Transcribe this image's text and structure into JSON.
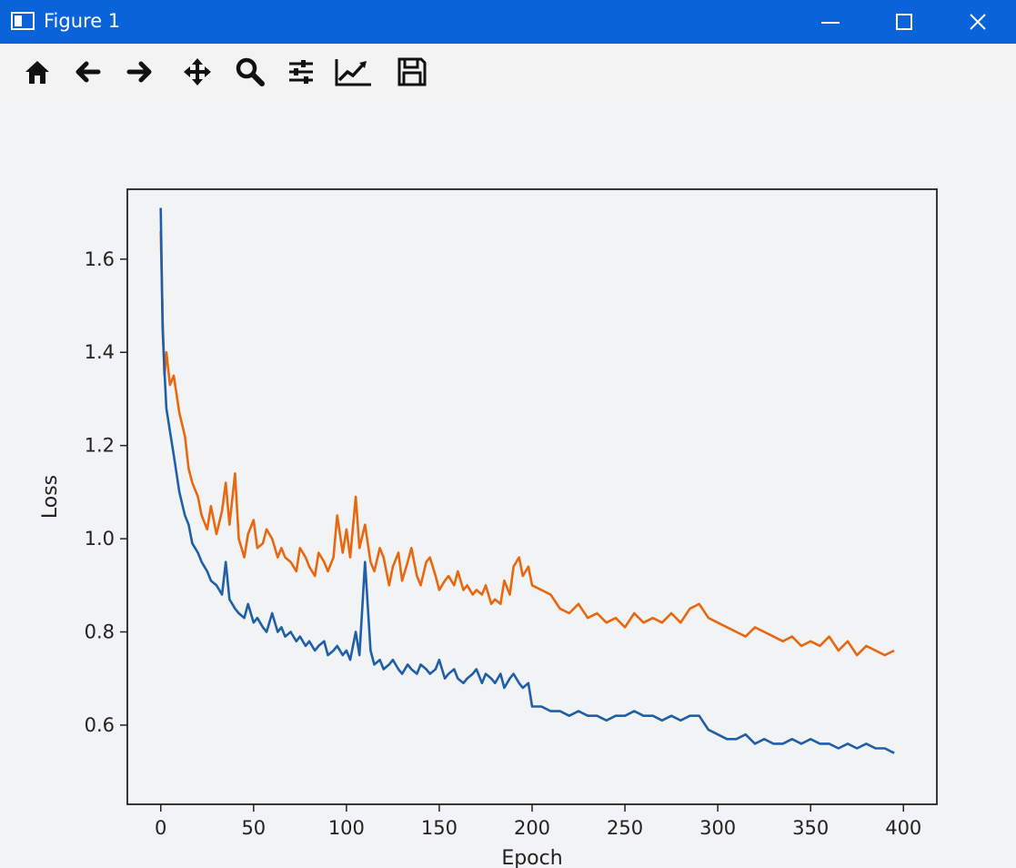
{
  "window": {
    "title": "Figure 1"
  },
  "toolbar": {
    "tools": [
      {
        "name": "home-icon"
      },
      {
        "name": "back-arrow-icon"
      },
      {
        "name": "forward-arrow-icon"
      },
      {
        "name": "pan-icon"
      },
      {
        "name": "zoom-icon"
      },
      {
        "name": "configure-subplots-icon"
      },
      {
        "name": "edit-axis-icon"
      },
      {
        "name": "save-icon"
      }
    ]
  },
  "colors": {
    "title_bar": "#0a63d8",
    "series_blue": "#1f5ea8",
    "series_orange": "#e8670f"
  },
  "chart_data": {
    "type": "line",
    "title": "",
    "xlabel": "Epoch",
    "ylabel": "Loss",
    "xlim": [
      -18,
      418
    ],
    "ylim": [
      0.43,
      1.75
    ],
    "xticks": [
      0,
      50,
      100,
      150,
      200,
      250,
      300,
      350,
      400
    ],
    "yticks": [
      0.6,
      0.8,
      1.0,
      1.2,
      1.4,
      1.6
    ],
    "grid": false,
    "legend": "none",
    "series": [
      {
        "color": "#e8670f",
        "x": [
          0,
          1,
          2,
          3,
          5,
          7,
          10,
          13,
          15,
          17,
          20,
          22,
          25,
          27,
          30,
          33,
          35,
          37,
          40,
          42,
          45,
          47,
          50,
          52,
          55,
          57,
          60,
          63,
          65,
          67,
          70,
          73,
          75,
          78,
          80,
          83,
          85,
          88,
          90,
          93,
          95,
          98,
          100,
          102,
          105,
          107,
          110,
          113,
          115,
          118,
          120,
          123,
          125,
          128,
          130,
          133,
          135,
          138,
          140,
          143,
          145,
          148,
          150,
          153,
          155,
          158,
          160,
          163,
          165,
          168,
          170,
          173,
          175,
          178,
          180,
          183,
          185,
          188,
          190,
          193,
          195,
          198,
          200,
          205,
          210,
          215,
          220,
          225,
          230,
          235,
          240,
          245,
          250,
          255,
          260,
          265,
          270,
          275,
          280,
          285,
          290,
          295,
          300,
          305,
          310,
          315,
          320,
          325,
          330,
          335,
          340,
          345,
          350,
          355,
          360,
          365,
          370,
          375,
          380,
          385,
          390,
          395
        ],
        "y": [
          1.66,
          1.47,
          1.35,
          1.4,
          1.33,
          1.35,
          1.27,
          1.22,
          1.15,
          1.12,
          1.09,
          1.05,
          1.02,
          1.07,
          1.01,
          1.06,
          1.12,
          1.03,
          1.14,
          1.0,
          0.96,
          1.01,
          1.04,
          0.98,
          0.99,
          1.02,
          1.0,
          0.96,
          0.98,
          0.96,
          0.95,
          0.93,
          0.98,
          0.96,
          0.94,
          0.92,
          0.97,
          0.95,
          0.93,
          0.96,
          1.05,
          0.97,
          1.02,
          0.96,
          1.09,
          0.98,
          1.03,
          0.95,
          0.93,
          0.98,
          0.96,
          0.9,
          0.94,
          0.97,
          0.91,
          0.95,
          0.98,
          0.92,
          0.9,
          0.95,
          0.96,
          0.92,
          0.89,
          0.91,
          0.92,
          0.9,
          0.93,
          0.89,
          0.9,
          0.88,
          0.89,
          0.88,
          0.9,
          0.86,
          0.87,
          0.86,
          0.91,
          0.88,
          0.94,
          0.96,
          0.92,
          0.94,
          0.9,
          0.89,
          0.88,
          0.85,
          0.84,
          0.86,
          0.83,
          0.84,
          0.82,
          0.83,
          0.81,
          0.84,
          0.82,
          0.83,
          0.82,
          0.84,
          0.82,
          0.85,
          0.86,
          0.83,
          0.82,
          0.81,
          0.8,
          0.79,
          0.81,
          0.8,
          0.79,
          0.78,
          0.79,
          0.77,
          0.78,
          0.77,
          0.79,
          0.76,
          0.78,
          0.75,
          0.77,
          0.76,
          0.75,
          0.76
        ]
      },
      {
        "color": "#1f5ea8",
        "x": [
          0,
          1,
          2,
          3,
          5,
          7,
          10,
          13,
          15,
          17,
          20,
          22,
          25,
          27,
          30,
          33,
          35,
          37,
          40,
          42,
          45,
          47,
          50,
          52,
          55,
          57,
          60,
          63,
          65,
          67,
          70,
          73,
          75,
          78,
          80,
          83,
          85,
          88,
          90,
          93,
          95,
          98,
          100,
          102,
          105,
          107,
          110,
          113,
          115,
          118,
          120,
          123,
          125,
          128,
          130,
          133,
          135,
          138,
          140,
          143,
          145,
          148,
          150,
          153,
          155,
          158,
          160,
          163,
          165,
          168,
          170,
          173,
          175,
          178,
          180,
          183,
          185,
          188,
          190,
          193,
          195,
          198,
          200,
          205,
          210,
          215,
          220,
          225,
          230,
          235,
          240,
          245,
          250,
          255,
          260,
          265,
          270,
          275,
          280,
          285,
          290,
          295,
          300,
          305,
          310,
          315,
          320,
          325,
          330,
          335,
          340,
          345,
          350,
          355,
          360,
          365,
          370,
          375,
          380,
          385,
          390,
          395
        ],
        "y": [
          1.71,
          1.45,
          1.36,
          1.28,
          1.23,
          1.18,
          1.1,
          1.05,
          1.03,
          0.99,
          0.97,
          0.95,
          0.93,
          0.91,
          0.9,
          0.88,
          0.95,
          0.87,
          0.85,
          0.84,
          0.83,
          0.86,
          0.82,
          0.83,
          0.81,
          0.8,
          0.84,
          0.8,
          0.81,
          0.79,
          0.8,
          0.78,
          0.79,
          0.77,
          0.78,
          0.76,
          0.77,
          0.78,
          0.75,
          0.76,
          0.77,
          0.75,
          0.76,
          0.74,
          0.8,
          0.75,
          0.95,
          0.76,
          0.73,
          0.74,
          0.72,
          0.73,
          0.74,
          0.72,
          0.71,
          0.73,
          0.72,
          0.71,
          0.73,
          0.72,
          0.71,
          0.72,
          0.74,
          0.7,
          0.71,
          0.72,
          0.7,
          0.69,
          0.7,
          0.71,
          0.72,
          0.69,
          0.71,
          0.7,
          0.69,
          0.71,
          0.68,
          0.7,
          0.71,
          0.69,
          0.68,
          0.69,
          0.64,
          0.64,
          0.63,
          0.63,
          0.62,
          0.63,
          0.62,
          0.62,
          0.61,
          0.62,
          0.62,
          0.63,
          0.62,
          0.62,
          0.61,
          0.62,
          0.61,
          0.62,
          0.62,
          0.59,
          0.58,
          0.57,
          0.57,
          0.58,
          0.56,
          0.57,
          0.56,
          0.56,
          0.57,
          0.56,
          0.57,
          0.56,
          0.56,
          0.55,
          0.56,
          0.55,
          0.56,
          0.55,
          0.55,
          0.54
        ]
      }
    ]
  }
}
